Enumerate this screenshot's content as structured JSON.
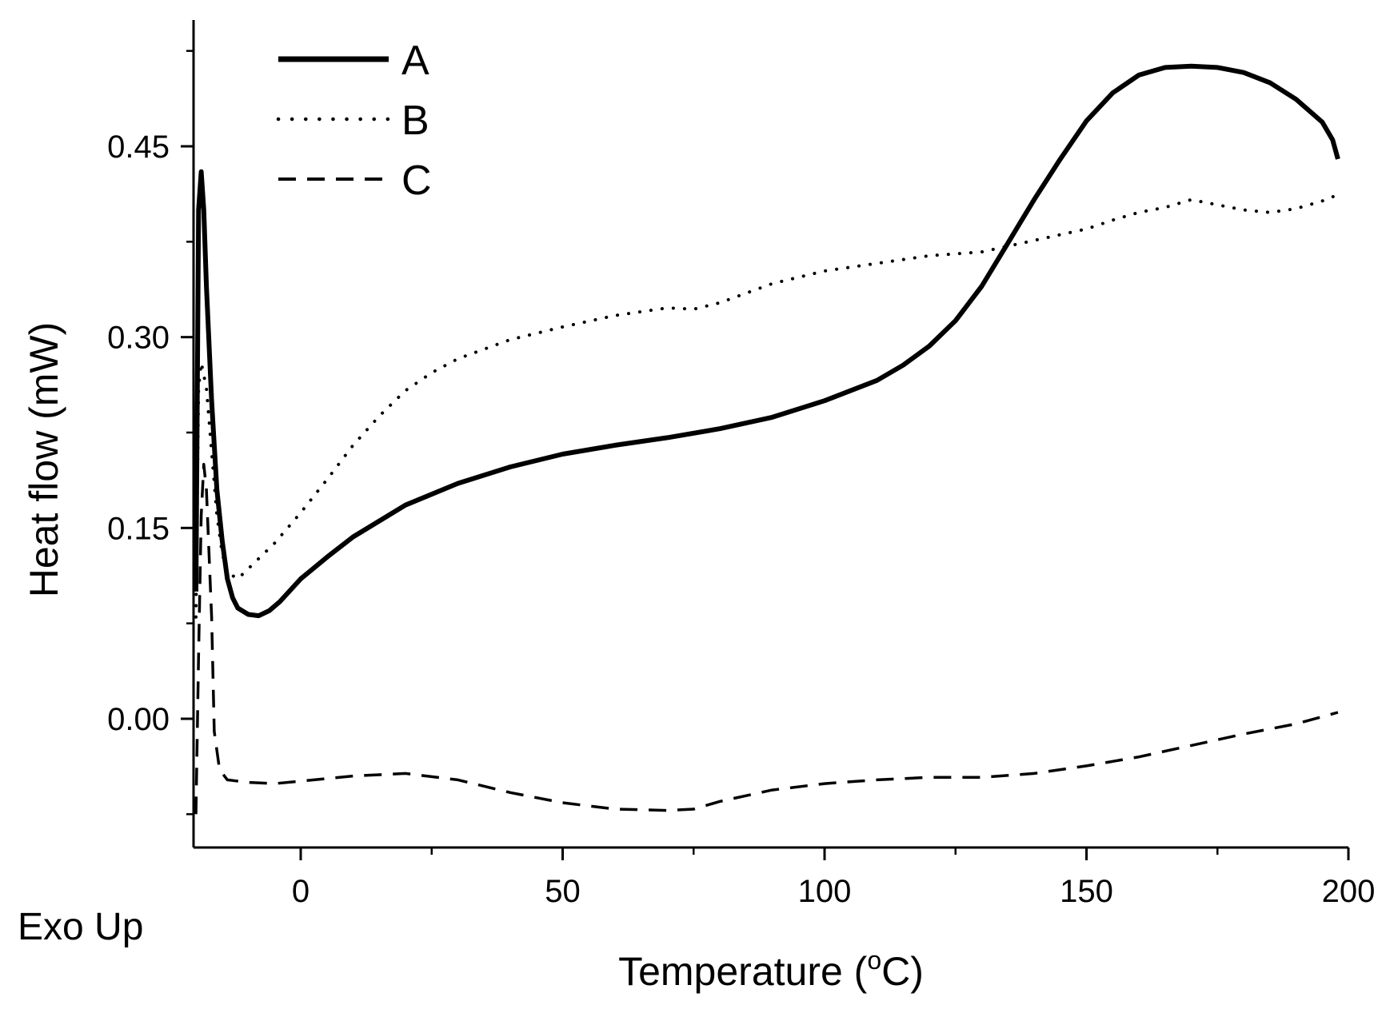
{
  "chart_data": {
    "type": "line",
    "title": "",
    "xlabel": "Temperature (",
    "xlabel_superscript": "o",
    "xlabel_suffix": "C)",
    "ylabel": "Heat flow (mW)",
    "annotation": "Exo Up",
    "xlim": [
      -20,
      200
    ],
    "ylim": [
      -0.1,
      0.55
    ],
    "xticks": [
      0,
      50,
      100,
      150,
      200
    ],
    "xtick_labels": [
      "0",
      "50",
      "100",
      "150",
      "200"
    ],
    "yticks": [
      0.0,
      0.15,
      0.3,
      0.45
    ],
    "ytick_labels": [
      "0.00",
      "0.15",
      "0.30",
      "0.45"
    ],
    "grid": false,
    "legend_position": "top-left",
    "series": [
      {
        "name": "A",
        "style": "solid",
        "points": [
          [
            -20,
            0.1
          ],
          [
            -19.5,
            0.4
          ],
          [
            -19,
            0.43
          ],
          [
            -18.5,
            0.4
          ],
          [
            -18,
            0.34
          ],
          [
            -17,
            0.25
          ],
          [
            -16,
            0.18
          ],
          [
            -15,
            0.14
          ],
          [
            -14,
            0.11
          ],
          [
            -13,
            0.095
          ],
          [
            -12,
            0.087
          ],
          [
            -10,
            0.082
          ],
          [
            -8,
            0.081
          ],
          [
            -6,
            0.085
          ],
          [
            -4,
            0.092
          ],
          [
            0,
            0.11
          ],
          [
            5,
            0.127
          ],
          [
            10,
            0.143
          ],
          [
            20,
            0.168
          ],
          [
            30,
            0.185
          ],
          [
            40,
            0.198
          ],
          [
            50,
            0.208
          ],
          [
            60,
            0.215
          ],
          [
            70,
            0.221
          ],
          [
            80,
            0.228
          ],
          [
            90,
            0.237
          ],
          [
            100,
            0.25
          ],
          [
            110,
            0.266
          ],
          [
            115,
            0.278
          ],
          [
            120,
            0.293
          ],
          [
            125,
            0.313
          ],
          [
            130,
            0.34
          ],
          [
            135,
            0.374
          ],
          [
            140,
            0.408
          ],
          [
            145,
            0.44
          ],
          [
            150,
            0.47
          ],
          [
            155,
            0.492
          ],
          [
            160,
            0.506
          ],
          [
            165,
            0.512
          ],
          [
            170,
            0.513
          ],
          [
            175,
            0.512
          ],
          [
            180,
            0.508
          ],
          [
            185,
            0.5
          ],
          [
            190,
            0.487
          ],
          [
            195,
            0.469
          ],
          [
            197,
            0.455
          ],
          [
            198,
            0.44
          ]
        ]
      },
      {
        "name": "B",
        "style": "dotted",
        "points": [
          [
            -20,
            0.08
          ],
          [
            -19.5,
            0.26
          ],
          [
            -19,
            0.28
          ],
          [
            -18,
            0.26
          ],
          [
            -17,
            0.21
          ],
          [
            -16,
            0.16
          ],
          [
            -15,
            0.13
          ],
          [
            -14,
            0.115
          ],
          [
            -12,
            0.11
          ],
          [
            -10,
            0.118
          ],
          [
            -8,
            0.126
          ],
          [
            -5,
            0.138
          ],
          [
            0,
            0.162
          ],
          [
            5,
            0.188
          ],
          [
            10,
            0.215
          ],
          [
            15,
            0.238
          ],
          [
            20,
            0.258
          ],
          [
            25,
            0.272
          ],
          [
            30,
            0.283
          ],
          [
            40,
            0.298
          ],
          [
            50,
            0.308
          ],
          [
            60,
            0.317
          ],
          [
            70,
            0.323
          ],
          [
            75,
            0.322
          ],
          [
            80,
            0.327
          ],
          [
            90,
            0.342
          ],
          [
            100,
            0.352
          ],
          [
            110,
            0.358
          ],
          [
            120,
            0.364
          ],
          [
            130,
            0.367
          ],
          [
            140,
            0.376
          ],
          [
            150,
            0.385
          ],
          [
            155,
            0.392
          ],
          [
            160,
            0.398
          ],
          [
            165,
            0.402
          ],
          [
            170,
            0.408
          ],
          [
            175,
            0.404
          ],
          [
            180,
            0.4
          ],
          [
            185,
            0.398
          ],
          [
            190,
            0.401
          ],
          [
            195,
            0.407
          ],
          [
            198,
            0.412
          ]
        ]
      },
      {
        "name": "C",
        "style": "dashed",
        "points": [
          [
            -20,
            -0.075
          ],
          [
            -19.5,
            0.05
          ],
          [
            -19,
            0.16
          ],
          [
            -18.5,
            0.2
          ],
          [
            -18,
            0.18
          ],
          [
            -17,
            0.08
          ],
          [
            -16.5,
            -0.01
          ],
          [
            -15.5,
            -0.04
          ],
          [
            -14,
            -0.048
          ],
          [
            -10,
            -0.05
          ],
          [
            -5,
            -0.051
          ],
          [
            0,
            -0.049
          ],
          [
            10,
            -0.045
          ],
          [
            20,
            -0.043
          ],
          [
            30,
            -0.048
          ],
          [
            40,
            -0.058
          ],
          [
            50,
            -0.066
          ],
          [
            60,
            -0.071
          ],
          [
            70,
            -0.072
          ],
          [
            75,
            -0.071
          ],
          [
            80,
            -0.065
          ],
          [
            90,
            -0.056
          ],
          [
            100,
            -0.051
          ],
          [
            110,
            -0.048
          ],
          [
            120,
            -0.046
          ],
          [
            130,
            -0.046
          ],
          [
            140,
            -0.043
          ],
          [
            150,
            -0.037
          ],
          [
            160,
            -0.03
          ],
          [
            170,
            -0.021
          ],
          [
            180,
            -0.012
          ],
          [
            190,
            -0.004
          ],
          [
            198,
            0.005
          ]
        ]
      }
    ]
  }
}
